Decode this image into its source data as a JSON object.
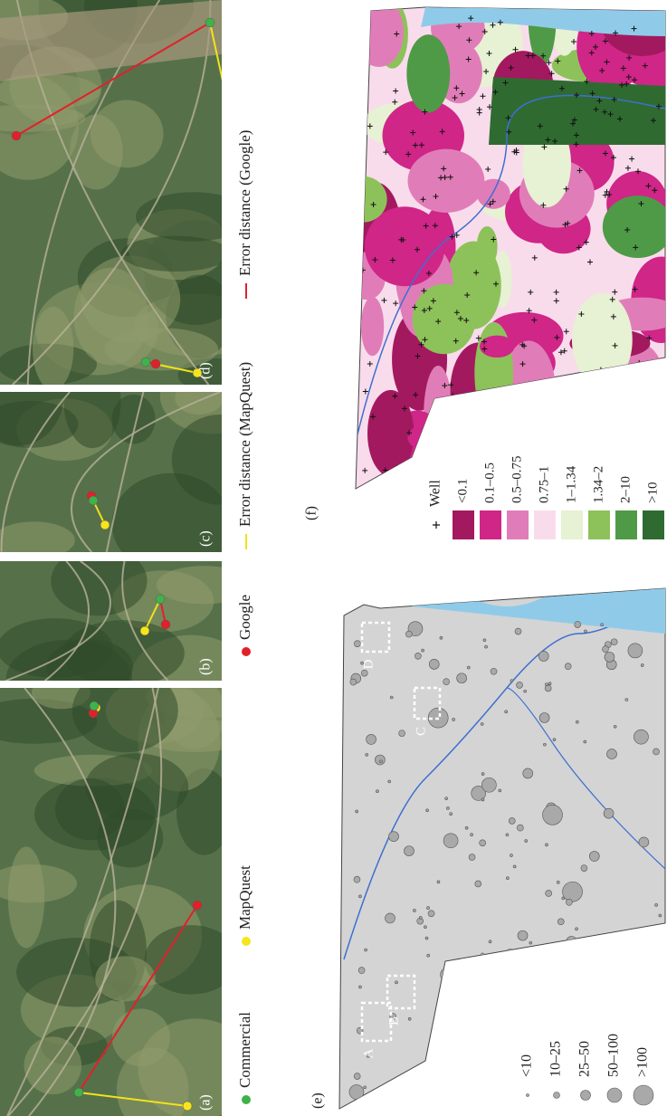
{
  "panels": [
    "(a)",
    "(b)",
    "(c)",
    "(d)"
  ],
  "legend": {
    "commercial": "Commercial",
    "mapquest": "MapQuest",
    "google": "Google",
    "error_mapquest": "Error distance (MapQuest)",
    "error_google": "Error distance (Google)"
  },
  "map_e": {
    "label": "(e)",
    "boxes": [
      "A",
      "B",
      "C",
      "D"
    ],
    "sizes": [
      "<10",
      "10–25",
      "25–50",
      "50–100",
      ">100"
    ]
  },
  "map_f": {
    "label": "(f)",
    "well": "Well",
    "classes": [
      {
        "name": "<0.1",
        "color": "#a3195f"
      },
      {
        "name": "0.1–0.5",
        "color": "#cf2688"
      },
      {
        "name": "0.5–0.75",
        "color": "#e07db8"
      },
      {
        "name": "0.75–1",
        "color": "#f9dcec"
      },
      {
        "name": "1–1.34",
        "color": "#e7f1d3"
      },
      {
        "name": "1.34–2",
        "color": "#8dc25a"
      },
      {
        "name": "2–10",
        "color": "#4f9a47"
      },
      {
        "name": ">10",
        "color": "#2f6b31"
      }
    ]
  }
}
